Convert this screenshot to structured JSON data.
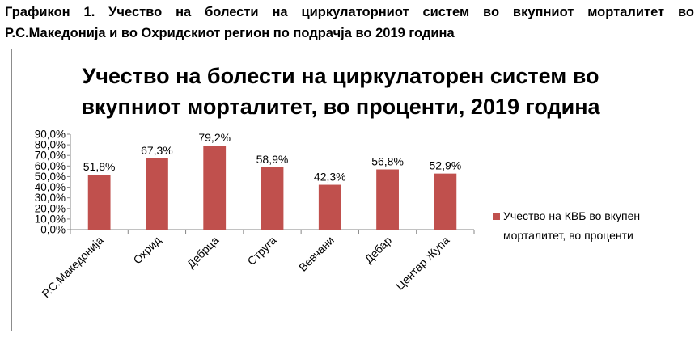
{
  "caption": {
    "line1": "Графикон 1. Учество на болести на циркулаторниот систем во вкупниот морталитет во",
    "line2": "Р.С.Македонија и во Охридскиот регион по подрачја во 2019 година"
  },
  "chart_data": {
    "type": "bar",
    "title_line1": "Учество на болести на циркулаторен систем во",
    "title_line2": "вкупниот морталитет, во проценти, 2019 година",
    "categories": [
      "Р.С.Македонија",
      "Охрид",
      "Дебрца",
      "Струга",
      "Вевчани",
      "Дебар",
      "Центар Жупа"
    ],
    "series": [
      {
        "name": "Учество на КВБ во вкупен морталитет, во проценти",
        "values": [
          51.8,
          67.3,
          79.2,
          58.9,
          42.3,
          56.8,
          52.9
        ],
        "labels": [
          "51,8%",
          "67,3%",
          "79,2%",
          "58,9%",
          "42,3%",
          "56,8%",
          "52,9%"
        ]
      }
    ],
    "legend_lines": [
      "Учество на КВБ во вкупен",
      "морталитет, во проценти"
    ],
    "yticks": [
      0,
      10,
      20,
      30,
      40,
      50,
      60,
      70,
      80,
      90
    ],
    "ytick_labels": [
      "0,0%",
      "10,0%",
      "20,0%",
      "30,0%",
      "40,0%",
      "50,0%",
      "60,0%",
      "70,0%",
      "80,0%",
      "90,0%"
    ],
    "ylim": [
      0,
      90
    ],
    "bar_color": "#c0504d",
    "legend_position": "right",
    "grid": false
  }
}
